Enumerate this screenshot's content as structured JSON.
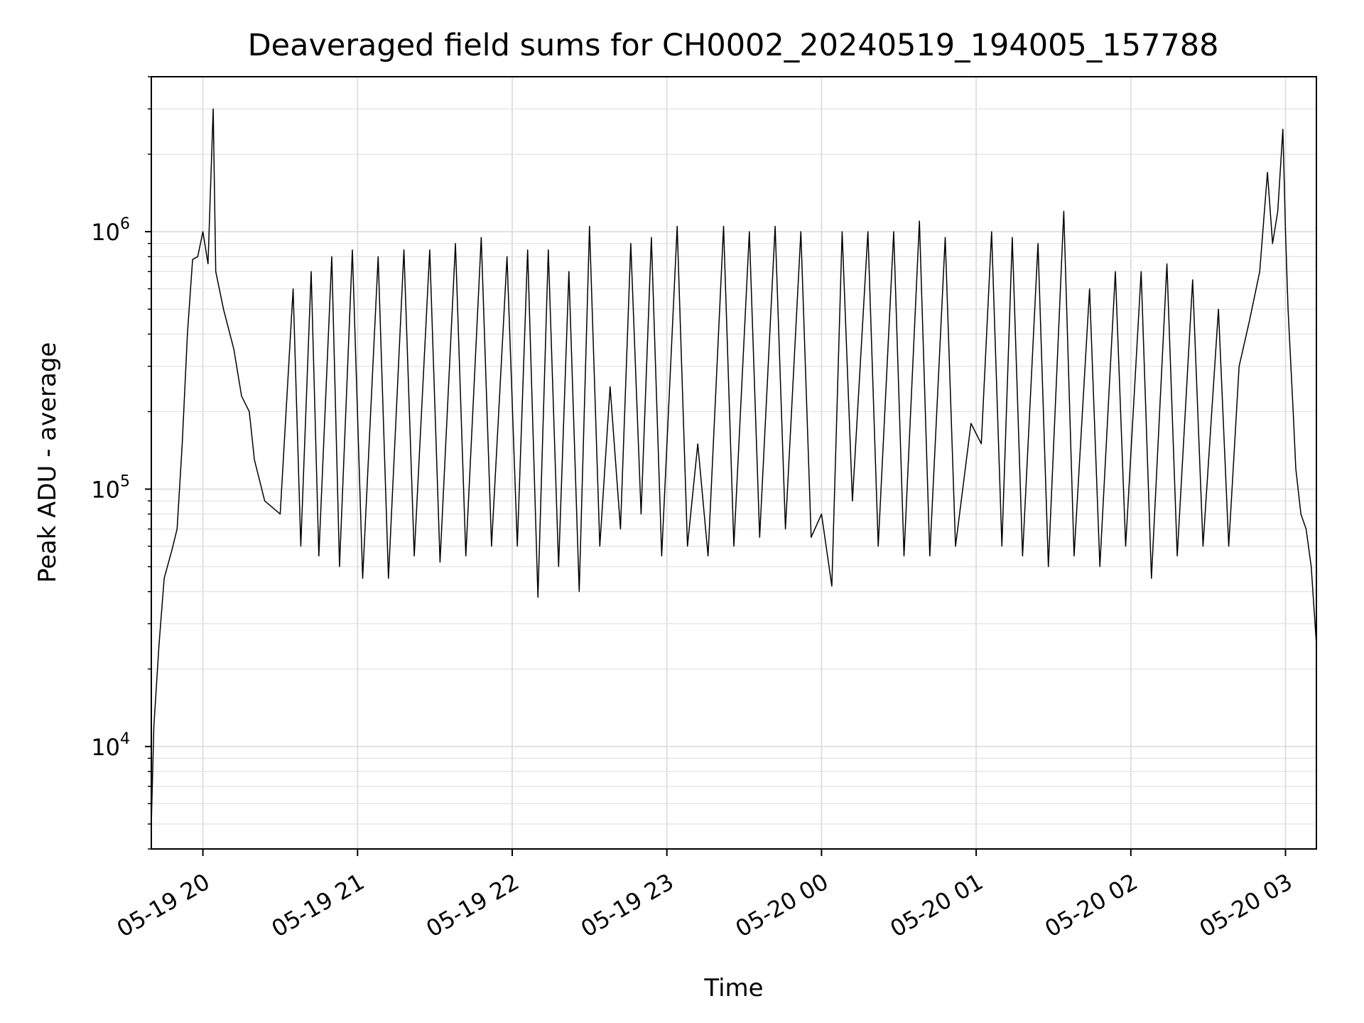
{
  "chart_data": {
    "type": "line",
    "title": "Deaveraged field sums for CH0002_20240519_194005_157788",
    "xlabel": "Time",
    "ylabel": "Peak ADU - average",
    "x_start": "2024-05-19 19:40",
    "x_end": "2024-05-20 03:12",
    "xlim": [
      "2024-05-19 19:40",
      "2024-05-20 03:12"
    ],
    "ylim": [
      4000,
      4000000
    ],
    "y_scale": "log",
    "grid": true,
    "line_color": "#000000",
    "x_ticks": [
      {
        "value": "2024-05-19 20:00",
        "label": "05-19 20"
      },
      {
        "value": "2024-05-19 21:00",
        "label": "05-19 21"
      },
      {
        "value": "2024-05-19 22:00",
        "label": "05-19 22"
      },
      {
        "value": "2024-05-19 23:00",
        "label": "05-19 23"
      },
      {
        "value": "2024-05-20 00:00",
        "label": "05-20 00"
      },
      {
        "value": "2024-05-20 01:00",
        "label": "05-20 01"
      },
      {
        "value": "2024-05-20 02:00",
        "label": "05-20 02"
      },
      {
        "value": "2024-05-20 03:00",
        "label": "05-20 03"
      }
    ],
    "y_ticks": [
      {
        "value": 10000,
        "base": "10",
        "exp": "4"
      },
      {
        "value": 100000,
        "base": "10",
        "exp": "5"
      },
      {
        "value": 1000000,
        "base": "10",
        "exp": "6"
      }
    ],
    "series": [
      {
        "values": [
          [
            "2024-05-19 19:40",
            5000
          ],
          [
            "2024-05-19 19:41",
            12000
          ],
          [
            "2024-05-19 19:43",
            25000
          ],
          [
            "2024-05-19 19:45",
            45000
          ],
          [
            "2024-05-19 19:48",
            58000
          ],
          [
            "2024-05-19 19:50",
            70000
          ],
          [
            "2024-05-19 19:52",
            150000
          ],
          [
            "2024-05-19 19:54",
            400000
          ],
          [
            "2024-05-19 19:56",
            780000
          ],
          [
            "2024-05-19 19:58",
            800000
          ],
          [
            "2024-05-19 20:00",
            1000000
          ],
          [
            "2024-05-19 20:02",
            750000
          ],
          [
            "2024-05-19 20:04",
            3000000
          ],
          [
            "2024-05-19 20:05",
            700000
          ],
          [
            "2024-05-19 20:08",
            500000
          ],
          [
            "2024-05-19 20:12",
            350000
          ],
          [
            "2024-05-19 20:15",
            230000
          ],
          [
            "2024-05-19 20:18",
            200000
          ],
          [
            "2024-05-19 20:20",
            130000
          ],
          [
            "2024-05-19 20:24",
            90000
          ],
          [
            "2024-05-19 20:30",
            80000
          ],
          [
            "2024-05-19 20:35",
            600000
          ],
          [
            "2024-05-19 20:38",
            60000
          ],
          [
            "2024-05-19 20:42",
            700000
          ],
          [
            "2024-05-19 20:45",
            55000
          ],
          [
            "2024-05-19 20:50",
            800000
          ],
          [
            "2024-05-19 20:53",
            50000
          ],
          [
            "2024-05-19 20:58",
            850000
          ],
          [
            "2024-05-19 21:02",
            45000
          ],
          [
            "2024-05-19 21:08",
            800000
          ],
          [
            "2024-05-19 21:12",
            45000
          ],
          [
            "2024-05-19 21:18",
            850000
          ],
          [
            "2024-05-19 21:22",
            55000
          ],
          [
            "2024-05-19 21:28",
            850000
          ],
          [
            "2024-05-19 21:32",
            52000
          ],
          [
            "2024-05-19 21:38",
            900000
          ],
          [
            "2024-05-19 21:42",
            55000
          ],
          [
            "2024-05-19 21:48",
            950000
          ],
          [
            "2024-05-19 21:52",
            60000
          ],
          [
            "2024-05-19 21:58",
            800000
          ],
          [
            "2024-05-19 22:02",
            60000
          ],
          [
            "2024-05-19 22:06",
            850000
          ],
          [
            "2024-05-19 22:10",
            38000
          ],
          [
            "2024-05-19 22:14",
            850000
          ],
          [
            "2024-05-19 22:18",
            50000
          ],
          [
            "2024-05-19 22:22",
            700000
          ],
          [
            "2024-05-19 22:26",
            40000
          ],
          [
            "2024-05-19 22:30",
            1050000
          ],
          [
            "2024-05-19 22:34",
            60000
          ],
          [
            "2024-05-19 22:38",
            250000
          ],
          [
            "2024-05-19 22:42",
            70000
          ],
          [
            "2024-05-19 22:46",
            900000
          ],
          [
            "2024-05-19 22:50",
            80000
          ],
          [
            "2024-05-19 22:54",
            950000
          ],
          [
            "2024-05-19 22:58",
            55000
          ],
          [
            "2024-05-19 23:04",
            1050000
          ],
          [
            "2024-05-19 23:08",
            60000
          ],
          [
            "2024-05-19 23:12",
            150000
          ],
          [
            "2024-05-19 23:16",
            55000
          ],
          [
            "2024-05-19 23:22",
            1050000
          ],
          [
            "2024-05-19 23:26",
            60000
          ],
          [
            "2024-05-19 23:32",
            1000000
          ],
          [
            "2024-05-19 23:36",
            65000
          ],
          [
            "2024-05-19 23:42",
            1050000
          ],
          [
            "2024-05-19 23:46",
            70000
          ],
          [
            "2024-05-19 23:52",
            1000000
          ],
          [
            "2024-05-19 23:56",
            65000
          ],
          [
            "2024-05-20 00:00",
            80000
          ],
          [
            "2024-05-20 00:04",
            42000
          ],
          [
            "2024-05-20 00:08",
            1000000
          ],
          [
            "2024-05-20 00:12",
            90000
          ],
          [
            "2024-05-20 00:18",
            1000000
          ],
          [
            "2024-05-20 00:22",
            60000
          ],
          [
            "2024-05-20 00:28",
            1000000
          ],
          [
            "2024-05-20 00:32",
            55000
          ],
          [
            "2024-05-20 00:38",
            1100000
          ],
          [
            "2024-05-20 00:42",
            55000
          ],
          [
            "2024-05-20 00:48",
            950000
          ],
          [
            "2024-05-20 00:52",
            60000
          ],
          [
            "2024-05-20 00:58",
            180000
          ],
          [
            "2024-05-20 01:02",
            150000
          ],
          [
            "2024-05-20 01:06",
            1000000
          ],
          [
            "2024-05-20 01:10",
            60000
          ],
          [
            "2024-05-20 01:14",
            950000
          ],
          [
            "2024-05-20 01:18",
            55000
          ],
          [
            "2024-05-20 01:24",
            900000
          ],
          [
            "2024-05-20 01:28",
            50000
          ],
          [
            "2024-05-20 01:34",
            1200000
          ],
          [
            "2024-05-20 01:38",
            55000
          ],
          [
            "2024-05-20 01:44",
            600000
          ],
          [
            "2024-05-20 01:48",
            50000
          ],
          [
            "2024-05-20 01:54",
            700000
          ],
          [
            "2024-05-20 01:58",
            60000
          ],
          [
            "2024-05-20 02:04",
            700000
          ],
          [
            "2024-05-20 02:08",
            45000
          ],
          [
            "2024-05-20 02:14",
            750000
          ],
          [
            "2024-05-20 02:18",
            55000
          ],
          [
            "2024-05-20 02:24",
            650000
          ],
          [
            "2024-05-20 02:28",
            60000
          ],
          [
            "2024-05-20 02:34",
            500000
          ],
          [
            "2024-05-20 02:38",
            60000
          ],
          [
            "2024-05-20 02:42",
            300000
          ],
          [
            "2024-05-20 02:46",
            450000
          ],
          [
            "2024-05-20 02:50",
            700000
          ],
          [
            "2024-05-20 02:53",
            1700000
          ],
          [
            "2024-05-20 02:55",
            900000
          ],
          [
            "2024-05-20 02:57",
            1200000
          ],
          [
            "2024-05-20 02:59",
            2500000
          ],
          [
            "2024-05-20 03:00",
            1000000
          ],
          [
            "2024-05-20 03:01",
            500000
          ],
          [
            "2024-05-20 03:03",
            200000
          ],
          [
            "2024-05-20 03:04",
            120000
          ],
          [
            "2024-05-20 03:06",
            80000
          ],
          [
            "2024-05-20 03:08",
            70000
          ],
          [
            "2024-05-20 03:10",
            50000
          ],
          [
            "2024-05-20 03:12",
            25000
          ]
        ]
      }
    ]
  }
}
